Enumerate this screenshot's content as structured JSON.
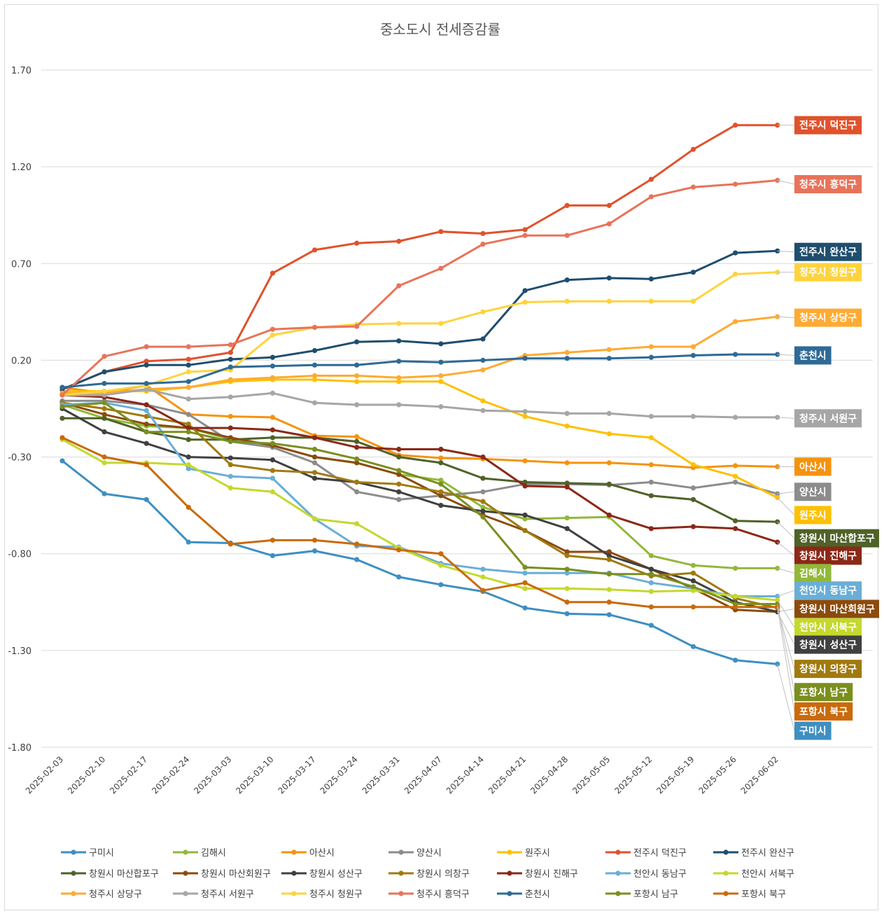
{
  "chart_data": {
    "type": "line",
    "title": "중소도시 전세증감률",
    "xlabel": "",
    "ylabel": "",
    "x": [
      "2025-02-03",
      "2025-02-10",
      "2025-02-17",
      "2025-02-24",
      "2025-03-03",
      "2025-03-10",
      "2025-03-17",
      "2025-03-24",
      "2025-03-31",
      "2025-04-07",
      "2025-04-14",
      "2025-04-21",
      "2025-04-28",
      "2025-05-05",
      "2025-05-12",
      "2025-05-19",
      "2025-05-26",
      "2025-06-02"
    ],
    "ylim": [
      -1.8,
      1.7
    ],
    "yticks": [
      "1.70",
      "1.20",
      "0.70",
      "0.20",
      "-0.30",
      "-0.80",
      "-1.30",
      "-1.80"
    ],
    "grid": true,
    "legend_position": "bottom",
    "series": [
      {
        "name": "구미시",
        "color": "#3e8fc1",
        "values": [
          -0.32,
          -0.49,
          -0.52,
          -0.74,
          -0.745,
          -0.81,
          -0.785,
          -0.83,
          -0.92,
          -0.96,
          -0.995,
          -1.08,
          -1.11,
          -1.115,
          -1.17,
          -1.28,
          -1.35,
          -1.37
        ]
      },
      {
        "name": "김해시",
        "color": "#92b83a",
        "values": [
          -0.03,
          -0.1,
          -0.14,
          -0.15,
          -0.21,
          -0.24,
          -0.3,
          -0.33,
          -0.39,
          -0.42,
          -0.56,
          -0.62,
          -0.615,
          -0.61,
          -0.81,
          -0.86,
          -0.875,
          -0.875
        ]
      },
      {
        "name": "아산시",
        "color": "#f5930f",
        "values": [
          0.06,
          0.03,
          0.07,
          -0.08,
          -0.09,
          -0.095,
          -0.19,
          -0.195,
          -0.29,
          -0.305,
          -0.31,
          -0.32,
          -0.33,
          -0.33,
          -0.34,
          -0.355,
          -0.345,
          -0.35
        ]
      },
      {
        "name": "양산시",
        "color": "#8c8c8c",
        "values": [
          -0.01,
          -0.01,
          -0.03,
          -0.08,
          -0.22,
          -0.25,
          -0.33,
          -0.48,
          -0.52,
          -0.5,
          -0.48,
          -0.44,
          -0.44,
          -0.445,
          -0.43,
          -0.46,
          -0.43,
          -0.49
        ]
      },
      {
        "name": "원주시",
        "color": "#ffc000",
        "values": [
          0.04,
          0.04,
          0.04,
          0.06,
          0.09,
          0.1,
          0.1,
          0.09,
          0.09,
          0.09,
          -0.01,
          -0.09,
          -0.14,
          -0.18,
          -0.2,
          -0.34,
          -0.4,
          -0.51
        ]
      },
      {
        "name": "전주시 덕진구",
        "color": "#e0522c",
        "values": [
          0.05,
          0.14,
          0.195,
          0.205,
          0.24,
          0.65,
          0.77,
          0.805,
          0.815,
          0.865,
          0.855,
          0.875,
          1.0,
          1.0,
          1.135,
          1.29,
          1.415,
          1.415
        ]
      },
      {
        "name": "전주시 완산구",
        "color": "#1f4e6e",
        "values": [
          0.05,
          0.14,
          0.175,
          0.175,
          0.205,
          0.215,
          0.25,
          0.295,
          0.3,
          0.285,
          0.31,
          0.56,
          0.615,
          0.625,
          0.62,
          0.655,
          0.755,
          0.765
        ]
      },
      {
        "name": "창원시 마산합포구",
        "color": "#4f6228",
        "values": [
          -0.1,
          -0.1,
          -0.17,
          -0.21,
          -0.21,
          -0.2,
          -0.2,
          -0.22,
          -0.3,
          -0.33,
          -0.41,
          -0.43,
          -0.435,
          -0.44,
          -0.5,
          -0.52,
          -0.63,
          -0.635
        ]
      },
      {
        "name": "창원시 마산회원구",
        "color": "#8b4b0d",
        "values": [
          -0.02,
          -0.08,
          -0.13,
          -0.15,
          -0.2,
          -0.24,
          -0.3,
          -0.33,
          -0.39,
          -0.5,
          -0.6,
          -0.68,
          -0.79,
          -0.79,
          -0.88,
          -0.98,
          -1.09,
          -1.1
        ]
      },
      {
        "name": "창원시 성산구",
        "color": "#404040",
        "values": [
          -0.05,
          -0.17,
          -0.23,
          -0.3,
          -0.305,
          -0.315,
          -0.41,
          -0.43,
          -0.48,
          -0.55,
          -0.58,
          -0.6,
          -0.67,
          -0.81,
          -0.88,
          -0.94,
          -1.05,
          -1.1
        ]
      },
      {
        "name": "창원시 의창구",
        "color": "#a07a0f",
        "values": [
          -0.02,
          -0.05,
          -0.09,
          -0.13,
          -0.34,
          -0.37,
          -0.38,
          -0.43,
          -0.44,
          -0.48,
          -0.53,
          -0.68,
          -0.81,
          -0.83,
          -0.915,
          -0.9,
          -1.03,
          -1.08
        ]
      },
      {
        "name": "창원시 진해구",
        "color": "#8b2817",
        "values": [
          0.02,
          0.01,
          -0.03,
          -0.15,
          -0.15,
          -0.16,
          -0.2,
          -0.25,
          -0.26,
          -0.26,
          -0.3,
          -0.45,
          -0.455,
          -0.6,
          -0.67,
          -0.66,
          -0.67,
          -0.74
        ]
      },
      {
        "name": "천안시 동남구",
        "color": "#6aaed6",
        "values": [
          -0.03,
          -0.02,
          -0.06,
          -0.36,
          -0.4,
          -0.41,
          -0.62,
          -0.76,
          -0.765,
          -0.85,
          -0.88,
          -0.9,
          -0.9,
          -0.9,
          -0.95,
          -0.98,
          -1.02,
          -1.02
        ]
      },
      {
        "name": "천안시 서북구",
        "color": "#c4d82e",
        "values": [
          -0.21,
          -0.33,
          -0.33,
          -0.34,
          -0.46,
          -0.48,
          -0.62,
          -0.645,
          -0.77,
          -0.86,
          -0.92,
          -0.98,
          -0.98,
          -0.985,
          -0.995,
          -0.99,
          -1.02,
          -1.04
        ]
      },
      {
        "name": "청주시 상당구",
        "color": "#ffaa33",
        "values": [
          0.03,
          0.03,
          0.05,
          0.06,
          0.1,
          0.11,
          0.12,
          0.12,
          0.11,
          0.12,
          0.15,
          0.225,
          0.24,
          0.255,
          0.27,
          0.27,
          0.4,
          0.425
        ]
      },
      {
        "name": "청주시 서원구",
        "color": "#a6a6a6",
        "values": [
          0.02,
          0.02,
          0.05,
          0.0,
          0.01,
          0.03,
          -0.02,
          -0.03,
          -0.03,
          -0.04,
          -0.06,
          -0.065,
          -0.075,
          -0.075,
          -0.09,
          -0.09,
          -0.095,
          -0.095
        ]
      },
      {
        "name": "청주시 청원구",
        "color": "#ffd33d",
        "values": [
          0.02,
          0.04,
          0.07,
          0.14,
          0.15,
          0.33,
          0.37,
          0.385,
          0.39,
          0.39,
          0.45,
          0.5,
          0.505,
          0.505,
          0.505,
          0.505,
          0.645,
          0.655
        ]
      },
      {
        "name": "청주시 흥덕구",
        "color": "#e8735a",
        "values": [
          0.02,
          0.22,
          0.27,
          0.27,
          0.28,
          0.36,
          0.37,
          0.375,
          0.585,
          0.675,
          0.8,
          0.845,
          0.845,
          0.905,
          1.045,
          1.095,
          1.11,
          1.13
        ]
      },
      {
        "name": "춘천시",
        "color": "#2e6a96",
        "values": [
          0.06,
          0.08,
          0.08,
          0.09,
          0.165,
          0.17,
          0.175,
          0.175,
          0.195,
          0.19,
          0.2,
          0.21,
          0.21,
          0.21,
          0.215,
          0.225,
          0.23,
          0.23
        ]
      },
      {
        "name": "포항시 남구",
        "color": "#7a8f1e",
        "values": [
          -0.04,
          -0.02,
          -0.17,
          -0.17,
          -0.22,
          -0.23,
          -0.26,
          -0.31,
          -0.37,
          -0.44,
          -0.61,
          -0.87,
          -0.88,
          -0.905,
          -0.905,
          -0.97,
          -1.06,
          -1.06
        ]
      },
      {
        "name": "포항시 북구",
        "color": "#c96a0c",
        "values": [
          -0.2,
          -0.3,
          -0.34,
          -0.56,
          -0.75,
          -0.73,
          -0.73,
          -0.75,
          -0.78,
          -0.8,
          -0.99,
          -0.95,
          -1.05,
          -1.05,
          -1.075,
          -1.075,
          -1.075,
          -1.075
        ]
      }
    ],
    "end_labels": [
      {
        "text": "전주시 덕진구",
        "series": "전주시 덕진구",
        "y": 1.415
      },
      {
        "text": "청주시 흥덕구",
        "series": "청주시 흥덕구",
        "y": 1.11
      },
      {
        "text": "전주시 완산구",
        "series": "전주시 완산구",
        "y": 0.76
      },
      {
        "text": "청주시 청원구",
        "series": "청주시 청원구",
        "y": 0.655
      },
      {
        "text": "청주시 상당구",
        "series": "청주시 상당구",
        "y": 0.42
      },
      {
        "text": "춘천시",
        "series": "춘천시",
        "y": 0.225
      },
      {
        "text": "청주시 서원구",
        "series": "청주시 서원구",
        "y": -0.1
      },
      {
        "text": "아산시",
        "series": "아산시",
        "y": -0.35
      },
      {
        "text": "양산시",
        "series": "양산시",
        "y": -0.48
      },
      {
        "text": "원주시",
        "series": "원주시",
        "y": -0.6
      },
      {
        "text": "창원시 마산합포구",
        "series": "창원시 마산합포구",
        "y": -0.72
      },
      {
        "text": "창원시 진해구",
        "series": "창원시 진해구",
        "y": -0.81
      },
      {
        "text": "김해시",
        "series": "김해시",
        "y": -0.9
      },
      {
        "text": "천안시 동남구",
        "series": "천안시 동남구",
        "y": -0.99
      },
      {
        "text": "창원시 마산회원구",
        "series": "창원시 마산회원구",
        "y": -1.085
      },
      {
        "text": "천안시 서북구",
        "series": "천안시 서북구",
        "y": -1.18
      },
      {
        "text": "창원시 성산구",
        "series": "창원시 성산구",
        "y": -1.27
      },
      {
        "text": "창원시 의창구",
        "series": "창원시 의창구",
        "y": -1.395
      },
      {
        "text": "포항시 남구",
        "series": "포항시 남구",
        "y": -1.515
      },
      {
        "text": "포항시 북구",
        "series": "포항시 북구",
        "y": -1.615
      },
      {
        "text": "구미시",
        "series": "구미시",
        "y": -1.715
      }
    ]
  }
}
